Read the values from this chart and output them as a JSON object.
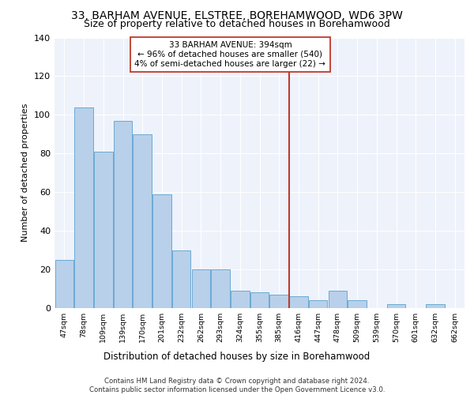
{
  "title1": "33, BARHAM AVENUE, ELSTREE, BOREHAMWOOD, WD6 3PW",
  "title2": "Size of property relative to detached houses in Borehamwood",
  "xlabel": "Distribution of detached houses by size in Borehamwood",
  "ylabel": "Number of detached properties",
  "categories": [
    "47sqm",
    "78sqm",
    "109sqm",
    "139sqm",
    "170sqm",
    "201sqm",
    "232sqm",
    "262sqm",
    "293sqm",
    "324sqm",
    "355sqm",
    "385sqm",
    "416sqm",
    "447sqm",
    "478sqm",
    "509sqm",
    "539sqm",
    "570sqm",
    "601sqm",
    "632sqm",
    "662sqm"
  ],
  "values": [
    25,
    104,
    81,
    97,
    90,
    59,
    30,
    20,
    20,
    9,
    8,
    7,
    6,
    4,
    9,
    4,
    0,
    2,
    0,
    2,
    0
  ],
  "bar_color": "#b8d0ea",
  "bar_edge_color": "#6aaad4",
  "marker_label_line1": "33 BARHAM AVENUE: 394sqm",
  "marker_label_line2": "← 96% of detached houses are smaller (540)",
  "marker_label_line3": "4% of semi-detached houses are larger (22) →",
  "vline_color": "#c0392b",
  "vline_x_index": 11,
  "ylim": [
    0,
    140
  ],
  "yticks": [
    0,
    20,
    40,
    60,
    80,
    100,
    120,
    140
  ],
  "footer": "Contains HM Land Registry data © Crown copyright and database right 2024.\nContains public sector information licensed under the Open Government Licence v3.0.",
  "bg_color": "#eef2fb",
  "grid_color": "#ffffff",
  "title1_fontsize": 10,
  "title2_fontsize": 9
}
